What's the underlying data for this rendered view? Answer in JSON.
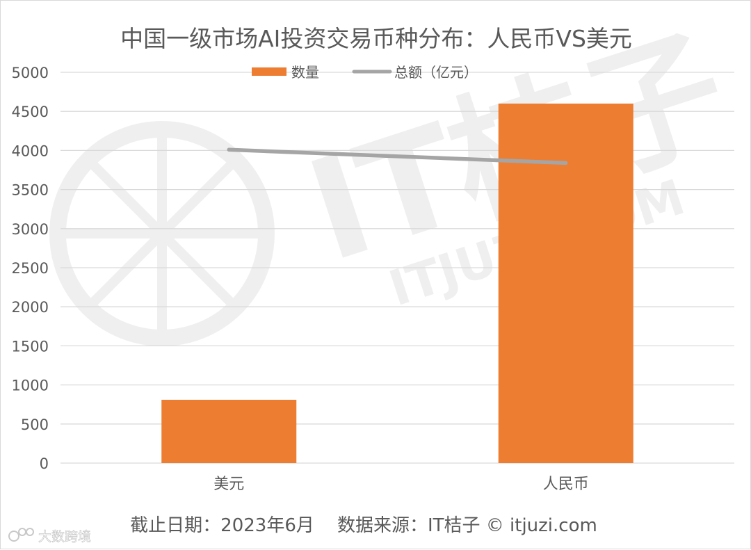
{
  "chart_data": {
    "type": "bar",
    "title": "中国一级市场AI投资交易币种分布：人民币VS美元",
    "categories": [
      "美元",
      "人民币"
    ],
    "series": [
      {
        "name": "数量",
        "kind": "bar",
        "values": [
          810,
          4600
        ]
      },
      {
        "name": "总额（亿元）",
        "kind": "line",
        "values": [
          4010,
          3840
        ]
      }
    ],
    "ylim": [
      0,
      5000
    ],
    "yticks": [
      0,
      500,
      1000,
      1500,
      2000,
      2500,
      3000,
      3500,
      4000,
      4500,
      5000
    ],
    "grid": true,
    "legend_position": "top-center",
    "xlabel": "",
    "ylabel": ""
  },
  "colors": {
    "bar": "#ed7d31",
    "line": "#a5a5a5",
    "grid": "#d9d9d9",
    "text": "#595959"
  },
  "watermark": {
    "brand": "IT桔子",
    "domain": "ITJUZI.COM"
  },
  "footer": {
    "text": "截止日期：2023年6月    数据来源：IT桔子 © itjuzi.com"
  },
  "corner_mark": {
    "text": "大数跨境"
  }
}
